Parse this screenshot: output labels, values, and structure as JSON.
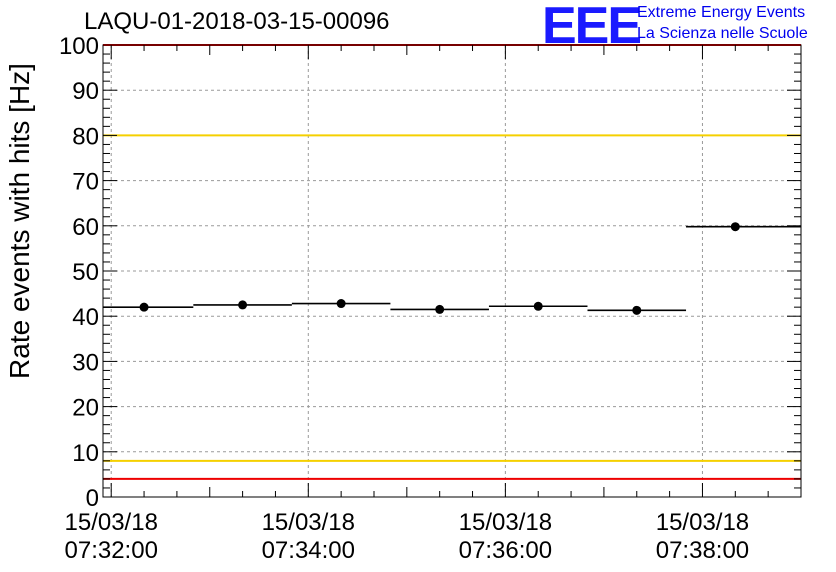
{
  "header": {
    "title": "LAQU-01-2018-03-15-00096",
    "logo_text": "EEE",
    "logo_line1": "Extreme Energy Events",
    "logo_line2": "La Scienza nelle Scuole",
    "logo_color": "#1a1aff"
  },
  "chart_data": {
    "type": "scatter",
    "title": "LAQU-01-2018-03-15-00096",
    "ylabel": "Rate events with hits [Hz]",
    "xlabel": "",
    "ylim": [
      0,
      100
    ],
    "yticks": [
      0,
      10,
      20,
      30,
      40,
      50,
      60,
      70,
      80,
      90,
      100
    ],
    "x_range": [
      "07:31:55",
      "07:39:00"
    ],
    "xticks": [
      {
        "time": "07:32:00",
        "label_date": "15/03/18",
        "label_time": "07:32:00"
      },
      {
        "time": "07:34:00",
        "label_date": "15/03/18",
        "label_time": "07:34:00"
      },
      {
        "time": "07:36:00",
        "label_date": "15/03/18",
        "label_time": "07:36:00"
      },
      {
        "time": "07:38:00",
        "label_date": "15/03/18",
        "label_time": "07:38:00"
      }
    ],
    "points": [
      {
        "x_start": "07:31:55",
        "x_end": "07:32:50",
        "x": "07:32:20",
        "y": 42.0
      },
      {
        "x_start": "07:32:50",
        "x_end": "07:33:50",
        "x": "07:33:20",
        "y": 42.5
      },
      {
        "x_start": "07:33:50",
        "x_end": "07:34:50",
        "x": "07:34:20",
        "y": 42.8
      },
      {
        "x_start": "07:34:50",
        "x_end": "07:35:50",
        "x": "07:35:20",
        "y": 41.5
      },
      {
        "x_start": "07:35:50",
        "x_end": "07:36:50",
        "x": "07:36:20",
        "y": 42.2
      },
      {
        "x_start": "07:36:50",
        "x_end": "07:37:50",
        "x": "07:37:20",
        "y": 41.3
      },
      {
        "x_start": "07:37:50",
        "x_end": "07:39:00",
        "x": "07:38:20",
        "y": 59.8
      }
    ],
    "reference_lines": [
      {
        "y": 100,
        "color": "#ee0000"
      },
      {
        "y": 80,
        "color": "#f5d000"
      },
      {
        "y": 8,
        "color": "#f5d000"
      },
      {
        "y": 4,
        "color": "#ee0000"
      }
    ],
    "grid": true,
    "marker_color": "#000000"
  }
}
